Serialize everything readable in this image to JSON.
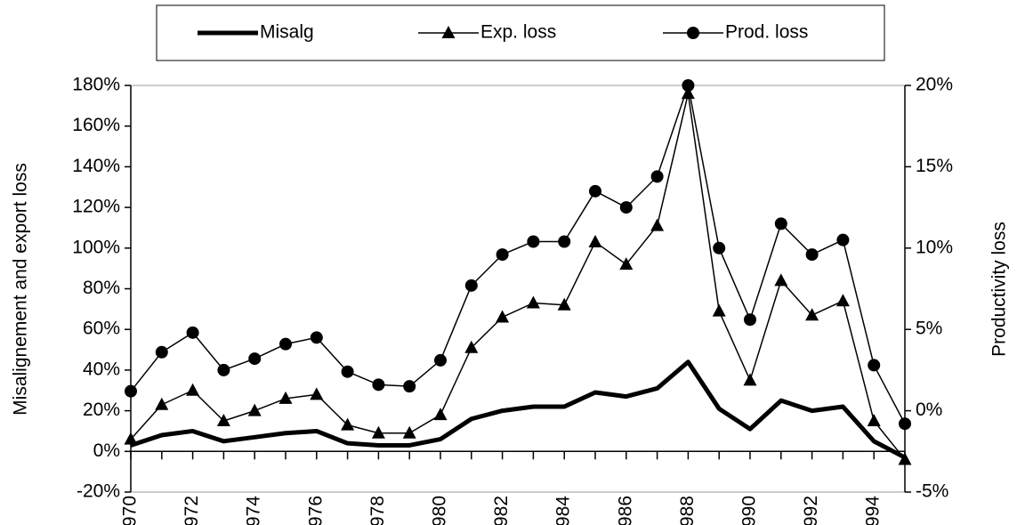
{
  "chart_data": {
    "type": "line",
    "y_label": "Misalignement and export loss",
    "y2_label": "Productivity loss",
    "categories": [
      "1970",
      null,
      "1972",
      null,
      "1974",
      null,
      "1976",
      null,
      "1978",
      null,
      "1980",
      null,
      "1982",
      null,
      "1984",
      null,
      "1986",
      null,
      "1988",
      null,
      "1990",
      null,
      "1992",
      null,
      "1994",
      null
    ],
    "series": [
      {
        "name": "Misalg",
        "color": "#000000",
        "marker": "none",
        "width": 5,
        "axis": "y",
        "values": [
          3,
          8,
          10,
          5,
          7,
          9,
          10,
          4,
          3,
          3,
          6,
          16,
          20,
          22,
          22,
          29,
          27,
          31,
          44,
          21,
          11,
          25,
          20,
          22,
          5,
          -3
        ]
      },
      {
        "name": "Exp. loss",
        "color": "#000000",
        "marker": "triangle",
        "width": 1.5,
        "axis": "y",
        "values": [
          6,
          23,
          30,
          15,
          20,
          26,
          28,
          13,
          9,
          9,
          18,
          51,
          66,
          73,
          72,
          103,
          92,
          111,
          176,
          69,
          35,
          84,
          67,
          74,
          15,
          -4
        ]
      },
      {
        "name": "Prod. loss",
        "color": "#000000",
        "marker": "circle",
        "width": 1.5,
        "axis": "y2",
        "values": [
          1.2,
          3.6,
          4.8,
          2.5,
          3.2,
          4.1,
          4.5,
          2.4,
          1.6,
          1.5,
          3.1,
          7.7,
          9.6,
          10.4,
          10.4,
          13.5,
          12.5,
          14.4,
          20,
          10,
          5.6,
          11.5,
          9.6,
          10.5,
          2.8,
          -0.8
        ]
      }
    ],
    "ylim": [
      -20,
      180
    ],
    "yticks": [
      {
        "value": -20,
        "label": "-20%"
      },
      {
        "value": 0,
        "label": "0%"
      },
      {
        "value": 20,
        "label": "20%"
      },
      {
        "value": 40,
        "label": "40%"
      },
      {
        "value": 60,
        "label": "60%"
      },
      {
        "value": 80,
        "label": "80%"
      },
      {
        "value": 100,
        "label": "100%"
      },
      {
        "value": 120,
        "label": "120%"
      },
      {
        "value": 140,
        "label": "140%"
      },
      {
        "value": 160,
        "label": "160%"
      },
      {
        "value": 180,
        "label": "180%"
      }
    ],
    "y2lim": [
      -5,
      20
    ],
    "y2ticks": [
      {
        "value": -5,
        "label": "-5%"
      },
      {
        "value": 0,
        "label": "0%"
      },
      {
        "value": 5,
        "label": "5%"
      },
      {
        "value": 10,
        "label": "10%"
      },
      {
        "value": 15,
        "label": "15%"
      },
      {
        "value": 20,
        "label": "20%"
      }
    ],
    "legend": "top",
    "grid": false
  }
}
